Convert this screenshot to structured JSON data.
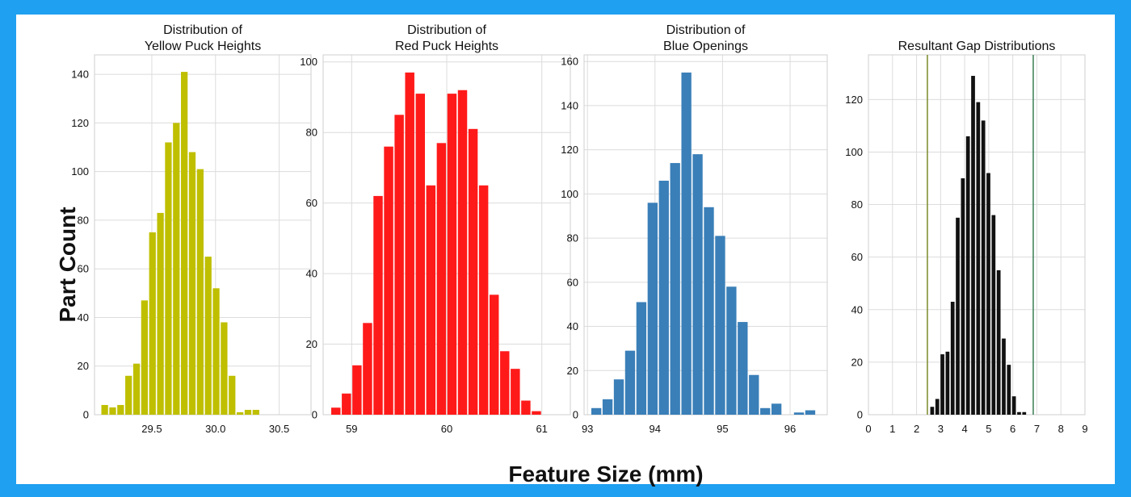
{
  "figure": {
    "ylabel": "Part Count",
    "xlabel": "Feature Size (mm)",
    "frame_color": "#1fa0f0"
  },
  "chart_data": [
    {
      "type": "bar",
      "title_lines": [
        "Distribution of",
        "Yellow Puck Heights"
      ],
      "color": "#bfbf00",
      "grid": true,
      "xlim": [
        29.05,
        30.75
      ],
      "ylim": [
        0,
        148
      ],
      "xticks": [
        29.5,
        30.0,
        30.5
      ],
      "xtick_labels": [
        "29.5",
        "30.0",
        "30.5"
      ],
      "yticks": [
        0,
        20,
        40,
        60,
        80,
        100,
        120,
        140
      ],
      "bin_start": 29.1,
      "bin_width": 0.0625,
      "values": [
        4,
        3,
        4,
        16,
        21,
        47,
        75,
        83,
        112,
        120,
        141,
        108,
        101,
        65,
        52,
        38,
        16,
        1,
        2,
        2
      ]
    },
    {
      "type": "bar",
      "title_lines": [
        "Distribution of",
        "Red Puck Heights"
      ],
      "color": "#ff1a1a",
      "grid": true,
      "xlim": [
        58.7,
        61.3
      ],
      "ylim": [
        0,
        102
      ],
      "xticks": [
        59,
        60,
        61
      ],
      "xtick_labels": [
        "59",
        "60",
        "61"
      ],
      "yticks": [
        0,
        20,
        40,
        60,
        80,
        100
      ],
      "bin_start": 58.78,
      "bin_width": 0.111,
      "values": [
        2,
        6,
        14,
        26,
        62,
        76,
        85,
        97,
        91,
        65,
        77,
        91,
        92,
        81,
        65,
        34,
        18,
        13,
        4,
        1
      ]
    },
    {
      "type": "bar",
      "title_lines": [
        "Distribution of",
        "Blue Openings"
      ],
      "color": "#3a7fb8",
      "grid": true,
      "xlim": [
        92.95,
        96.55
      ],
      "ylim": [
        0,
        163
      ],
      "xticks": [
        93,
        94,
        95,
        96
      ],
      "xtick_labels": [
        "93",
        "94",
        "95",
        "96"
      ],
      "yticks": [
        0,
        20,
        40,
        60,
        80,
        100,
        120,
        140,
        160
      ],
      "bin_start": 93.05,
      "bin_width": 0.1667,
      "values": [
        3,
        7,
        16,
        29,
        51,
        96,
        106,
        114,
        155,
        118,
        94,
        81,
        58,
        42,
        18,
        3,
        5,
        0,
        1,
        2
      ]
    },
    {
      "type": "bar",
      "title_lines": [
        "Resultant Gap Distributions"
      ],
      "color": "#111111",
      "grid": true,
      "xlim": [
        0,
        9
      ],
      "ylim": [
        0,
        137
      ],
      "xticks": [
        0,
        1,
        2,
        3,
        4,
        5,
        6,
        7,
        8,
        9
      ],
      "xtick_labels": [
        "0",
        "1",
        "2",
        "3",
        "4",
        "5",
        "6",
        "7",
        "8",
        "9"
      ],
      "yticks": [
        0,
        20,
        40,
        60,
        80,
        100,
        120
      ],
      "bin_start": 2.55,
      "bin_width": 0.2125,
      "values": [
        3,
        6,
        23,
        24,
        43,
        75,
        90,
        106,
        129,
        119,
        112,
        92,
        76,
        55,
        29,
        19,
        7,
        1,
        1
      ],
      "vlines": [
        {
          "x": 2.45,
          "color": "#7a8a2a"
        },
        {
          "x": 6.85,
          "color": "#3a7f55"
        }
      ]
    }
  ]
}
